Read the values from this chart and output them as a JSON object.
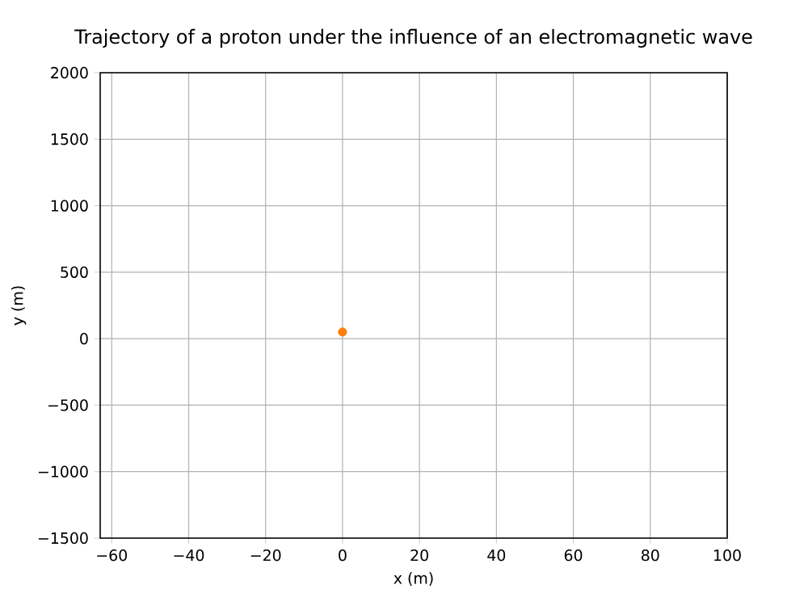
{
  "chart_data": {
    "type": "scatter",
    "title": "Trajectory of a proton under the influence of an electromagnetic wave",
    "xlabel": "x (m)",
    "ylabel": "y (m)",
    "x": [
      0
    ],
    "values": [
      50
    ],
    "color": "#ff7f0e",
    "marker": "circle",
    "xlim": [
      -63,
      100
    ],
    "ylim": [
      -1500,
      2000
    ],
    "xticks": [
      {
        "value": -60,
        "label": "−60"
      },
      {
        "value": -40,
        "label": "−40"
      },
      {
        "value": -20,
        "label": "−20"
      },
      0,
      20,
      40,
      60,
      80,
      100
    ],
    "yticks": [
      {
        "value": -1500,
        "label": "−1500"
      },
      {
        "value": -1000,
        "label": "−1000"
      },
      {
        "value": -500,
        "label": "−500"
      },
      0,
      500,
      1000,
      1500,
      2000
    ],
    "grid": true
  }
}
